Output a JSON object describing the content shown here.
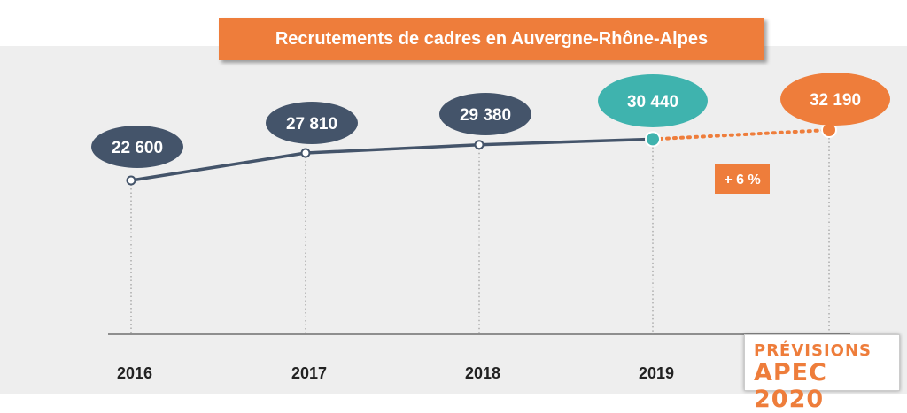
{
  "title": "Recrutements de cadres en Auvergne-Rhône-Alpes",
  "colors": {
    "orange": "#ee7d3b",
    "navy": "#44546a",
    "teal": "#3fb3ae",
    "panel": "#eeeeee"
  },
  "stamp": {
    "line1": "PRÉVISIONS",
    "line2": "APEC 2020"
  },
  "chart_data": {
    "type": "line",
    "title": "Recrutements de cadres en Auvergne-Rhône-Alpes",
    "categories": [
      "2016",
      "2017",
      "2018",
      "2019",
      "2020"
    ],
    "series": [
      {
        "values": [
          22600,
          27810,
          29380,
          30440,
          null
        ]
      },
      {
        "values": [
          null,
          null,
          null,
          30440,
          32190
        ],
        "style": "dotted"
      }
    ],
    "data_labels": [
      "22 600",
      "27 810",
      "29 380",
      "30 440",
      "32 190"
    ],
    "x_tick_labels": [
      "2016",
      "2017",
      "2018",
      "2019",
      ""
    ],
    "annotation": "+ 6 %",
    "ylim": [
      0,
      33000
    ],
    "grid": false,
    "legend": "none"
  }
}
